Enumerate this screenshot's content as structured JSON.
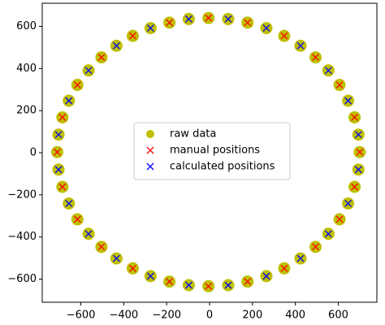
{
  "chart_data": {
    "type": "scatter",
    "legend": "center",
    "xlim": [
      -780,
      780
    ],
    "ylim": [
      -710,
      710
    ],
    "xticks": [
      {
        "value": -600,
        "label": "−600"
      },
      {
        "value": -400,
        "label": "−400"
      },
      {
        "value": -200,
        "label": "−200"
      },
      0,
      200,
      400,
      600
    ],
    "yticks": [
      {
        "value": -600,
        "label": "−600"
      },
      {
        "value": -400,
        "label": "−400"
      },
      {
        "value": -200,
        "label": "−200"
      },
      0,
      200,
      400,
      600
    ],
    "series": [
      {
        "name": "raw data",
        "color": "#bfbf00",
        "marker": "o",
        "x": [
          700,
          694,
          676,
          646,
          606,
          554,
          494,
          424,
          348,
          265,
          177,
          87,
          -5,
          -97,
          -187,
          -275,
          -358,
          -434,
          -504,
          -564,
          -616,
          -656,
          -686,
          -704,
          -710,
          -704,
          -686,
          -656,
          -616,
          -564,
          -504,
          -434,
          -358,
          -275,
          -187,
          -97,
          -5,
          87,
          177,
          265,
          348,
          424,
          494,
          554,
          606,
          646,
          676,
          694
        ],
        "y": [
          3,
          86,
          168,
          247,
          322,
          391,
          453,
          508,
          555,
          592,
          618,
          635,
          640,
          635,
          618,
          592,
          555,
          508,
          453,
          391,
          322,
          247,
          168,
          86,
          3,
          -80,
          -162,
          -241,
          -316,
          -385,
          -447,
          -502,
          -549,
          -586,
          -612,
          -629,
          -634,
          -629,
          -612,
          -586,
          -549,
          -502,
          -447,
          -385,
          -316,
          -241,
          -162,
          -80
        ]
      },
      {
        "name": "manual positions",
        "color": "#ff0000",
        "marker": "x",
        "x": [
          700,
          676,
          606,
          494,
          348,
          177,
          -5,
          -187,
          -358,
          -504,
          -616,
          -686,
          -710,
          -686,
          -616,
          -504,
          -358,
          -187,
          -5,
          177,
          348,
          494,
          606,
          676
        ],
        "y": [
          3,
          168,
          322,
          453,
          555,
          618,
          640,
          618,
          555,
          453,
          322,
          168,
          3,
          -162,
          -316,
          -447,
          -549,
          -612,
          -634,
          -612,
          -549,
          -447,
          -316,
          -162
        ]
      },
      {
        "name": "calculated positions",
        "color": "#0000ff",
        "marker": "x",
        "x": [
          694,
          646,
          554,
          424,
          265,
          87,
          -97,
          -275,
          -434,
          -564,
          -656,
          -704,
          -704,
          -656,
          -564,
          -434,
          -275,
          -97,
          87,
          265,
          424,
          554,
          646,
          694
        ],
        "y": [
          86,
          247,
          391,
          508,
          592,
          635,
          635,
          592,
          508,
          391,
          247,
          86,
          -80,
          -241,
          -385,
          -502,
          -586,
          -629,
          -629,
          -586,
          -502,
          -385,
          -241,
          -80
        ]
      }
    ]
  }
}
